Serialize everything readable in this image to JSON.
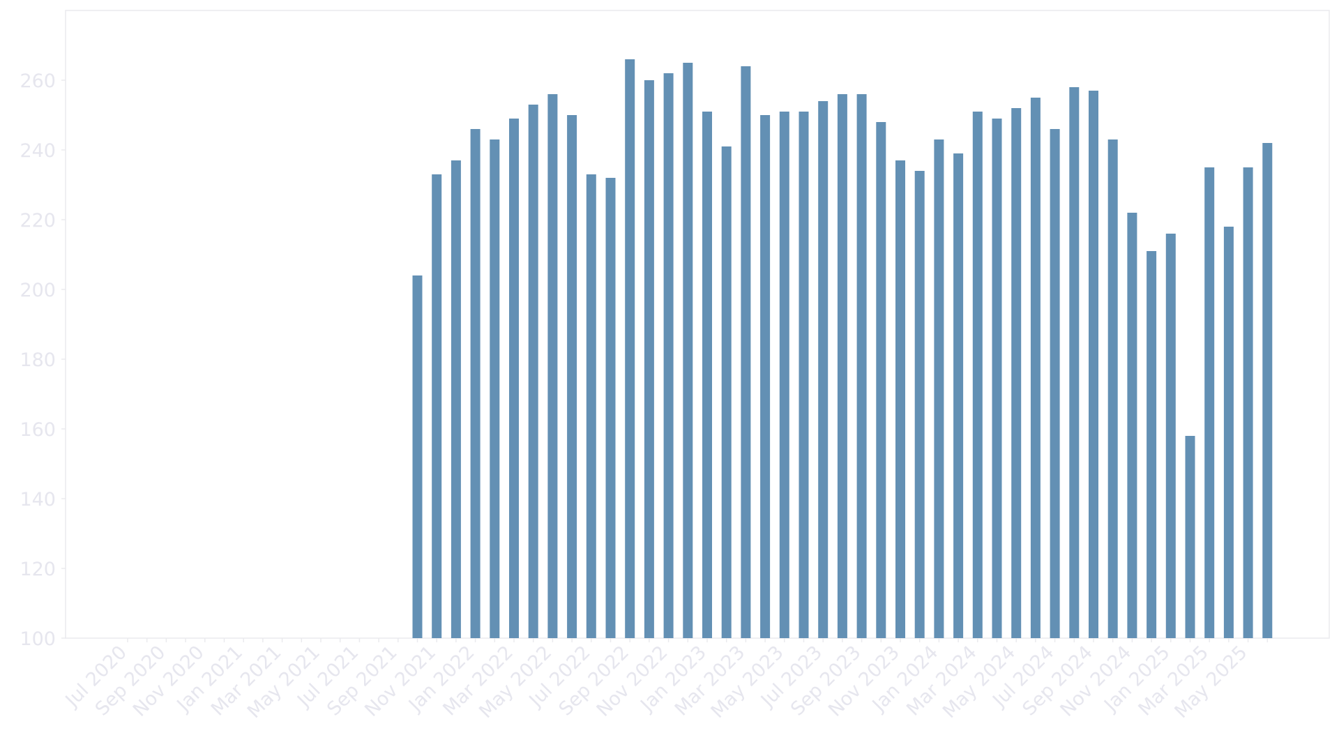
{
  "colors": {
    "bar": "#6390b4",
    "axis_text": "#e6e6ee",
    "frame": "#eaeaee",
    "background": "#ffffff"
  },
  "chart_data": {
    "type": "bar",
    "title": "",
    "xlabel": "",
    "ylabel": "",
    "ylim": [
      100,
      280
    ],
    "yticks": [
      100,
      120,
      140,
      160,
      180,
      200,
      220,
      240,
      260
    ],
    "grid": false,
    "legend": "none",
    "categories": [
      "Jul 2020",
      "Aug 2020",
      "Sep 2020",
      "Oct 2020",
      "Nov 2020",
      "Dec 2020",
      "Jan 2021",
      "Feb 2021",
      "Mar 2021",
      "Apr 2021",
      "May 2021",
      "Jun 2021",
      "Jul 2021",
      "Aug 2021",
      "Sep 2021",
      "Oct 2021",
      "Nov 2021",
      "Dec 2021",
      "Jan 2022",
      "Feb 2022",
      "Mar 2022",
      "Apr 2022",
      "May 2022",
      "Jun 2022",
      "Jul 2022",
      "Aug 2022",
      "Sep 2022",
      "Oct 2022",
      "Nov 2022",
      "Dec 2022",
      "Jan 2023",
      "Feb 2023",
      "Mar 2023",
      "Apr 2023",
      "May 2023",
      "Jun 2023",
      "Jul 2023",
      "Aug 2023",
      "Sep 2023",
      "Oct 2023",
      "Nov 2023",
      "Dec 2023",
      "Jan 2024",
      "Feb 2024",
      "Mar 2024",
      "Apr 2024",
      "May 2024",
      "Jun 2024",
      "Jul 2024",
      "Aug 2024",
      "Sep 2024",
      "Oct 2024",
      "Nov 2024",
      "Dec 2024",
      "Jan 2025",
      "Feb 2025",
      "Mar 2025",
      "Apr 2025",
      "May 2025",
      "Jun 2025"
    ],
    "tick_labels": [
      "Jul 2020",
      "Sep 2020",
      "Nov 2020",
      "Jan 2021",
      "Mar 2021",
      "May 2021",
      "Jul 2021",
      "Sep 2021",
      "Nov 2021",
      "Jan 2022",
      "Mar 2022",
      "May 2022",
      "Jul 2022",
      "Sep 2022",
      "Nov 2022",
      "Jan 2023",
      "Mar 2023",
      "May 2023",
      "Jul 2023",
      "Sep 2023",
      "Nov 2023",
      "Jan 2024",
      "Mar 2024",
      "May 2024",
      "Jul 2024",
      "Sep 2024",
      "Nov 2024",
      "Jan 2025",
      "Mar 2025",
      "May 2025"
    ],
    "values": [
      null,
      null,
      null,
      null,
      null,
      null,
      null,
      null,
      null,
      null,
      null,
      null,
      null,
      null,
      null,
      204,
      233,
      237,
      246,
      243,
      249,
      253,
      256,
      250,
      233,
      232,
      266,
      260,
      262,
      265,
      251,
      241,
      264,
      250,
      251,
      251,
      254,
      256,
      256,
      248,
      237,
      234,
      243,
      239,
      251,
      249,
      252,
      255,
      246,
      258,
      257,
      243,
      222,
      211,
      216,
      158,
      235,
      218,
      235,
      242
    ]
  }
}
